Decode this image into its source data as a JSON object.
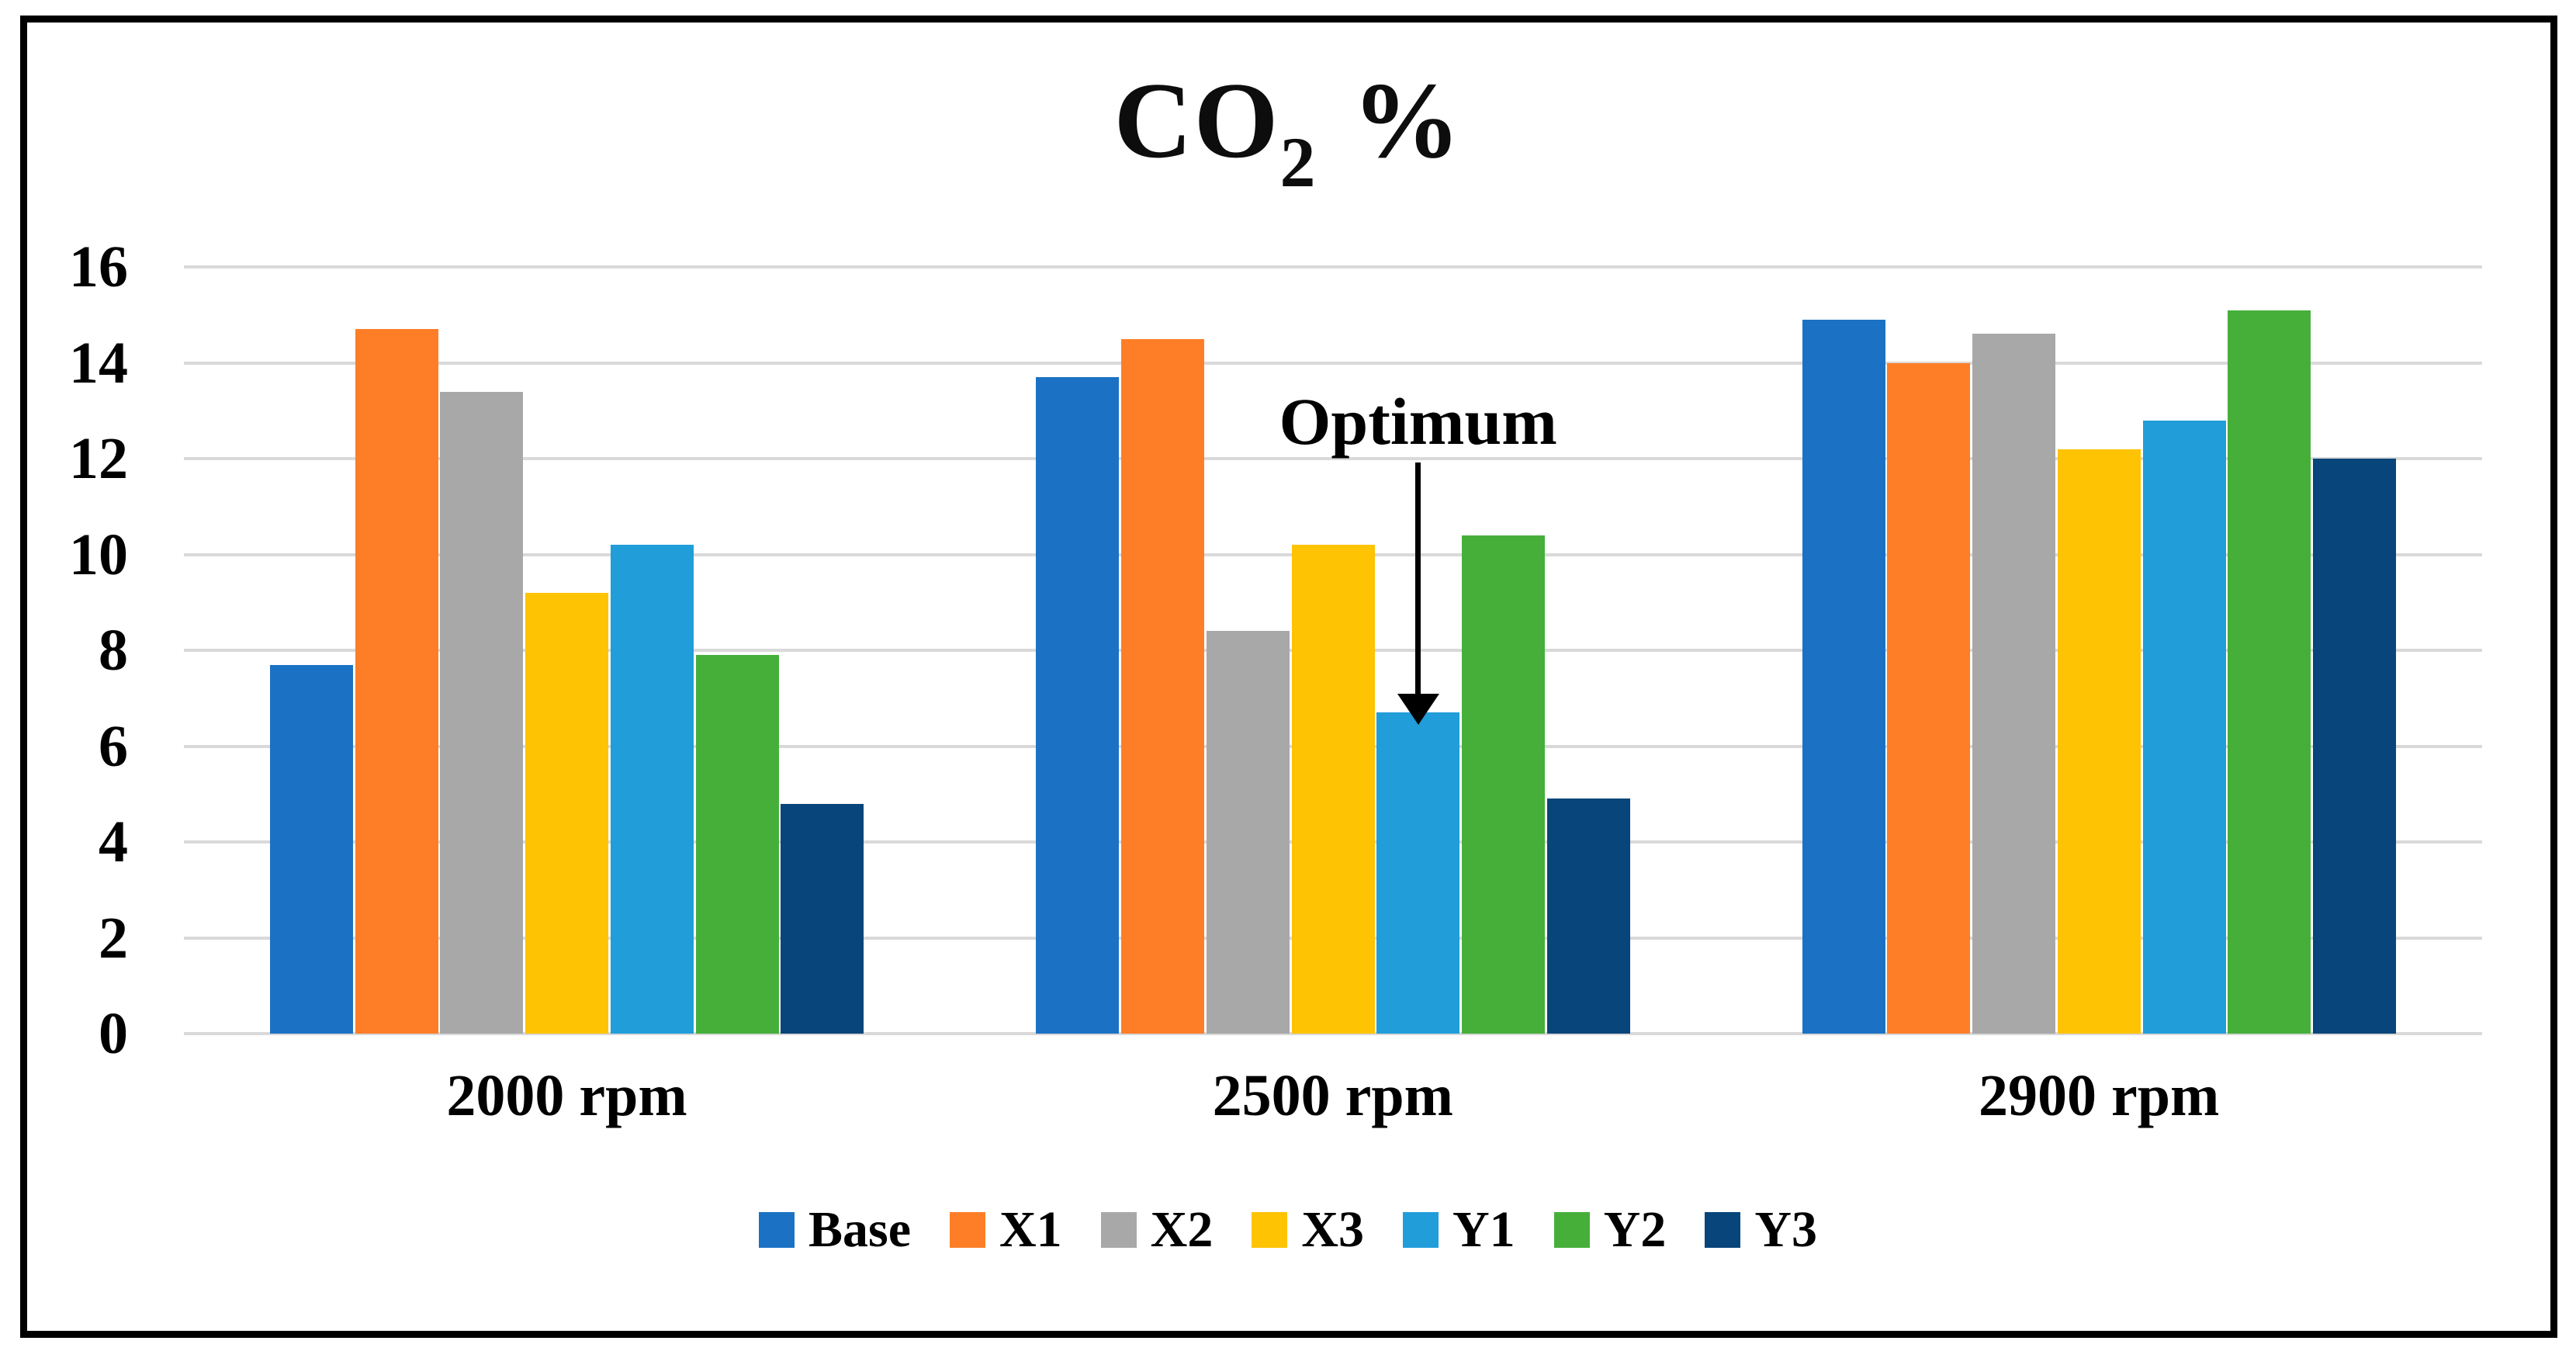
{
  "title": {
    "main": "CO",
    "sub": "2",
    "suffix": " %"
  },
  "chart_data": {
    "type": "bar",
    "title": "CO2 %",
    "categories": [
      "2000 rpm",
      "2500 rpm",
      "2900 rpm"
    ],
    "series": [
      {
        "name": "Base",
        "color": "#1B72C4",
        "values": [
          7.7,
          13.7,
          14.9
        ]
      },
      {
        "name": "X1",
        "color": "#FD7E27",
        "values": [
          14.7,
          14.5,
          14.0
        ]
      },
      {
        "name": "X2",
        "color": "#A8A8A8",
        "values": [
          13.4,
          8.4,
          14.6
        ]
      },
      {
        "name": "X3",
        "color": "#FEC303",
        "values": [
          9.2,
          10.2,
          12.2
        ]
      },
      {
        "name": "Y1",
        "color": "#219DD9",
        "values": [
          10.2,
          6.7,
          12.8
        ]
      },
      {
        "name": "Y2",
        "color": "#46AF3A",
        "values": [
          7.9,
          10.4,
          15.1
        ]
      },
      {
        "name": "Y3",
        "color": "#07457A",
        "values": [
          4.8,
          4.9,
          12.0
        ]
      }
    ],
    "ylim": [
      0,
      16
    ],
    "yticks": [
      0,
      2,
      4,
      6,
      8,
      10,
      12,
      14,
      16
    ],
    "grid": true,
    "gridline_color": "#D9D9D9",
    "legend_position": "bottom",
    "annotation": {
      "text": "Optimum",
      "category_index": 1,
      "series_index": 4
    }
  }
}
